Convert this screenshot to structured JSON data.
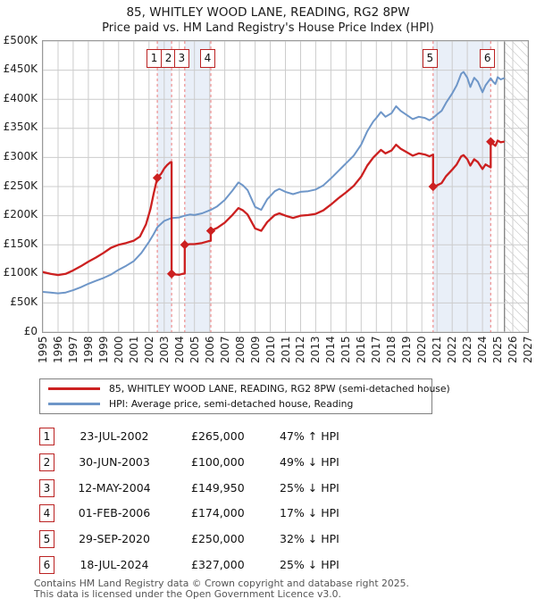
{
  "title": {
    "line1": "85, WHITLEY WOOD LANE, READING, RG2 8PW",
    "line2": "Price paid vs. HM Land Registry's House Price Index (HPI)"
  },
  "colors": {
    "property_line": "#cc2020",
    "hpi_line": "#6e96c8",
    "ownership_band": "#e9eff8",
    "sale_dashed_line": "#ee8f8f",
    "grid": "#cccccc",
    "hatch": "#bbbbbb",
    "marker_box_border": "#bb2222"
  },
  "chart_data": {
    "type": "line",
    "title": "85, WHITLEY WOOD LANE, READING, RG2 8PW",
    "subtitle": "Price paid vs. HM Land Registry's House Price Index (HPI)",
    "xlabel": "",
    "ylabel": "",
    "units": "GBP",
    "grid": true,
    "legend_position": "below",
    "x_range": [
      1995,
      2027
    ],
    "y_range": [
      0,
      500000
    ],
    "x_ticks": [
      1995,
      1996,
      1997,
      1998,
      1999,
      2000,
      2001,
      2002,
      2003,
      2004,
      2005,
      2006,
      2007,
      2008,
      2009,
      2010,
      2011,
      2012,
      2013,
      2014,
      2015,
      2016,
      2017,
      2018,
      2019,
      2020,
      2021,
      2022,
      2023,
      2024,
      2025,
      2026,
      2027
    ],
    "y_ticks": [
      {
        "value": 0,
        "label": "£0"
      },
      {
        "value": 50000,
        "label": "£50K"
      },
      {
        "value": 100000,
        "label": "£100K"
      },
      {
        "value": 150000,
        "label": "£150K"
      },
      {
        "value": 200000,
        "label": "£200K"
      },
      {
        "value": 250000,
        "label": "£250K"
      },
      {
        "value": 300000,
        "label": "£300K"
      },
      {
        "value": 350000,
        "label": "£350K"
      },
      {
        "value": 400000,
        "label": "£400K"
      },
      {
        "value": 450000,
        "label": "£450K"
      },
      {
        "value": 500000,
        "label": "£500K"
      }
    ],
    "series": [
      {
        "name": "85, WHITLEY WOOD LANE, READING, RG2 8PW (semi-detached house)",
        "color": "#cc2020",
        "points": [
          [
            1995,
            103000
          ],
          [
            1995.5,
            100000
          ],
          [
            1996,
            98000
          ],
          [
            1996.5,
            100000
          ],
          [
            1997,
            106000
          ],
          [
            1997.5,
            113000
          ],
          [
            1998,
            121000
          ],
          [
            1998.5,
            128000
          ],
          [
            1999,
            136000
          ],
          [
            1999.5,
            145000
          ],
          [
            2000,
            150000
          ],
          [
            2000.5,
            153000
          ],
          [
            2001,
            157000
          ],
          [
            2001.4,
            164000
          ],
          [
            2001.8,
            185000
          ],
          [
            2002.1,
            212000
          ],
          [
            2002.3,
            237000
          ],
          [
            2002.55,
            265000
          ],
          [
            2002.8,
            272000
          ],
          [
            2003,
            281000
          ],
          [
            2003.2,
            287000
          ],
          [
            2003.42,
            292000
          ],
          [
            2003.49,
            292000
          ],
          [
            2003.49,
            100000
          ],
          [
            2003.7,
            99000
          ],
          [
            2004,
            98500
          ],
          [
            2004.2,
            100000
          ],
          [
            2004.36,
            100500
          ],
          [
            2004.36,
            149950
          ],
          [
            2004.7,
            151000
          ],
          [
            2005,
            151000
          ],
          [
            2005.5,
            153000
          ],
          [
            2005.9,
            156000
          ],
          [
            2006.08,
            157000
          ],
          [
            2006.08,
            174000
          ],
          [
            2006.5,
            179000
          ],
          [
            2007,
            188000
          ],
          [
            2007.5,
            201000
          ],
          [
            2007.9,
            213000
          ],
          [
            2008.2,
            209000
          ],
          [
            2008.5,
            202000
          ],
          [
            2009,
            178000
          ],
          [
            2009.4,
            174000
          ],
          [
            2009.8,
            189000
          ],
          [
            2010.3,
            201000
          ],
          [
            2010.6,
            204000
          ],
          [
            2011,
            200000
          ],
          [
            2011.5,
            196000
          ],
          [
            2012,
            200000
          ],
          [
            2012.5,
            201000
          ],
          [
            2013,
            203000
          ],
          [
            2013.5,
            209000
          ],
          [
            2014,
            219000
          ],
          [
            2014.5,
            230000
          ],
          [
            2015,
            240000
          ],
          [
            2015.5,
            251000
          ],
          [
            2016,
            267000
          ],
          [
            2016.4,
            286000
          ],
          [
            2016.8,
            300000
          ],
          [
            2017,
            305000
          ],
          [
            2017.3,
            313000
          ],
          [
            2017.6,
            307000
          ],
          [
            2018,
            312000
          ],
          [
            2018.3,
            322000
          ],
          [
            2018.6,
            315000
          ],
          [
            2019,
            309000
          ],
          [
            2019.4,
            303000
          ],
          [
            2019.8,
            307000
          ],
          [
            2020.2,
            305000
          ],
          [
            2020.5,
            302000
          ],
          [
            2020.74,
            305000
          ],
          [
            2020.74,
            250000
          ],
          [
            2021,
            252000
          ],
          [
            2021.3,
            256000
          ],
          [
            2021.6,
            268000
          ],
          [
            2022,
            279000
          ],
          [
            2022.3,
            288000
          ],
          [
            2022.6,
            302000
          ],
          [
            2022.75,
            304000
          ],
          [
            2023,
            297000
          ],
          [
            2023.2,
            286000
          ],
          [
            2023.45,
            297000
          ],
          [
            2023.7,
            292000
          ],
          [
            2024,
            280000
          ],
          [
            2024.2,
            288000
          ],
          [
            2024.54,
            283000
          ],
          [
            2024.54,
            327000
          ],
          [
            2024.7,
            323000
          ],
          [
            2024.85,
            320000
          ],
          [
            2025,
            329000
          ],
          [
            2025.2,
            326000
          ],
          [
            2025.4,
            327000
          ]
        ]
      },
      {
        "name": "HPI: Average price, semi-detached house, Reading",
        "color": "#6e96c8",
        "points": [
          [
            1995,
            69000
          ],
          [
            1995.5,
            68000
          ],
          [
            1996,
            66500
          ],
          [
            1996.5,
            68000
          ],
          [
            1997,
            72000
          ],
          [
            1997.5,
            77000
          ],
          [
            1998,
            83000
          ],
          [
            1998.5,
            88000
          ],
          [
            1999,
            93000
          ],
          [
            1999.5,
            99000
          ],
          [
            2000,
            107000
          ],
          [
            2000.5,
            114000
          ],
          [
            2001,
            122000
          ],
          [
            2001.5,
            136000
          ],
          [
            2002,
            155000
          ],
          [
            2002.3,
            168000
          ],
          [
            2002.55,
            180000
          ],
          [
            2003,
            191000
          ],
          [
            2003.5,
            196000
          ],
          [
            2004,
            197000
          ],
          [
            2004.36,
            200000
          ],
          [
            2004.7,
            202000
          ],
          [
            2005,
            201000
          ],
          [
            2005.5,
            204000
          ],
          [
            2006.08,
            210000
          ],
          [
            2006.5,
            216000
          ],
          [
            2007,
            227000
          ],
          [
            2007.5,
            243000
          ],
          [
            2007.9,
            257000
          ],
          [
            2008.2,
            252000
          ],
          [
            2008.5,
            244000
          ],
          [
            2009,
            215000
          ],
          [
            2009.4,
            210000
          ],
          [
            2009.8,
            228000
          ],
          [
            2010.3,
            242000
          ],
          [
            2010.6,
            246000
          ],
          [
            2011,
            241000
          ],
          [
            2011.5,
            237000
          ],
          [
            2012,
            241000
          ],
          [
            2012.5,
            242000
          ],
          [
            2013,
            245000
          ],
          [
            2013.5,
            252000
          ],
          [
            2014,
            264000
          ],
          [
            2014.5,
            277000
          ],
          [
            2015,
            290000
          ],
          [
            2015.5,
            303000
          ],
          [
            2016,
            322000
          ],
          [
            2016.4,
            345000
          ],
          [
            2016.8,
            362000
          ],
          [
            2017,
            368000
          ],
          [
            2017.3,
            378000
          ],
          [
            2017.6,
            370000
          ],
          [
            2018,
            376000
          ],
          [
            2018.3,
            388000
          ],
          [
            2018.6,
            380000
          ],
          [
            2019,
            373000
          ],
          [
            2019.4,
            366000
          ],
          [
            2019.8,
            370000
          ],
          [
            2020.2,
            368000
          ],
          [
            2020.5,
            364000
          ],
          [
            2020.74,
            368000
          ],
          [
            2021,
            374000
          ],
          [
            2021.3,
            380000
          ],
          [
            2021.6,
            394000
          ],
          [
            2022,
            410000
          ],
          [
            2022.3,
            424000
          ],
          [
            2022.6,
            444000
          ],
          [
            2022.75,
            447000
          ],
          [
            2023,
            437000
          ],
          [
            2023.2,
            421000
          ],
          [
            2023.45,
            437000
          ],
          [
            2023.7,
            430000
          ],
          [
            2024,
            412000
          ],
          [
            2024.2,
            424000
          ],
          [
            2024.54,
            436000
          ],
          [
            2024.7,
            430000
          ],
          [
            2024.85,
            426000
          ],
          [
            2025,
            438000
          ],
          [
            2025.2,
            434000
          ],
          [
            2025.4,
            436000
          ]
        ]
      }
    ],
    "sales": [
      {
        "num": "1",
        "year": 2002.55,
        "price": 265000,
        "date": "23-JUL-2002",
        "price_label": "£265,000",
        "hpi_label": "47% ↑ HPI"
      },
      {
        "num": "2",
        "year": 2003.49,
        "price": 100000,
        "date": "30-JUN-2003",
        "price_label": "£100,000",
        "hpi_label": "49% ↓ HPI"
      },
      {
        "num": "3",
        "year": 2004.36,
        "price": 149950,
        "date": "12-MAY-2004",
        "price_label": "£149,950",
        "hpi_label": "25% ↓ HPI"
      },
      {
        "num": "4",
        "year": 2006.08,
        "price": 174000,
        "date": "01-FEB-2006",
        "price_label": "£174,000",
        "hpi_label": "17% ↓ HPI"
      },
      {
        "num": "5",
        "year": 2020.74,
        "price": 250000,
        "date": "29-SEP-2020",
        "price_label": "£250,000",
        "hpi_label": "32% ↓ HPI"
      },
      {
        "num": "6",
        "year": 2024.54,
        "price": 327000,
        "date": "18-JUL-2024",
        "price_label": "£327,000",
        "hpi_label": "25% ↓ HPI"
      }
    ],
    "ownership_bands": [
      [
        2002.55,
        2003.49
      ],
      [
        2004.36,
        2006.08
      ],
      [
        2020.74,
        2024.54
      ]
    ],
    "future_hatch_start": 2025.45
  },
  "legend": {
    "items": [
      {
        "label": "85, WHITLEY WOOD LANE, READING, RG2 8PW (semi-detached house)",
        "color": "#cc2020"
      },
      {
        "label": "HPI: Average price, semi-detached house, Reading",
        "color": "#6e96c8"
      }
    ]
  },
  "footer": {
    "line1": "Contains HM Land Registry data © Crown copyright and database right 2025.",
    "line2": "This data is licensed under the Open Government Licence v3.0."
  }
}
